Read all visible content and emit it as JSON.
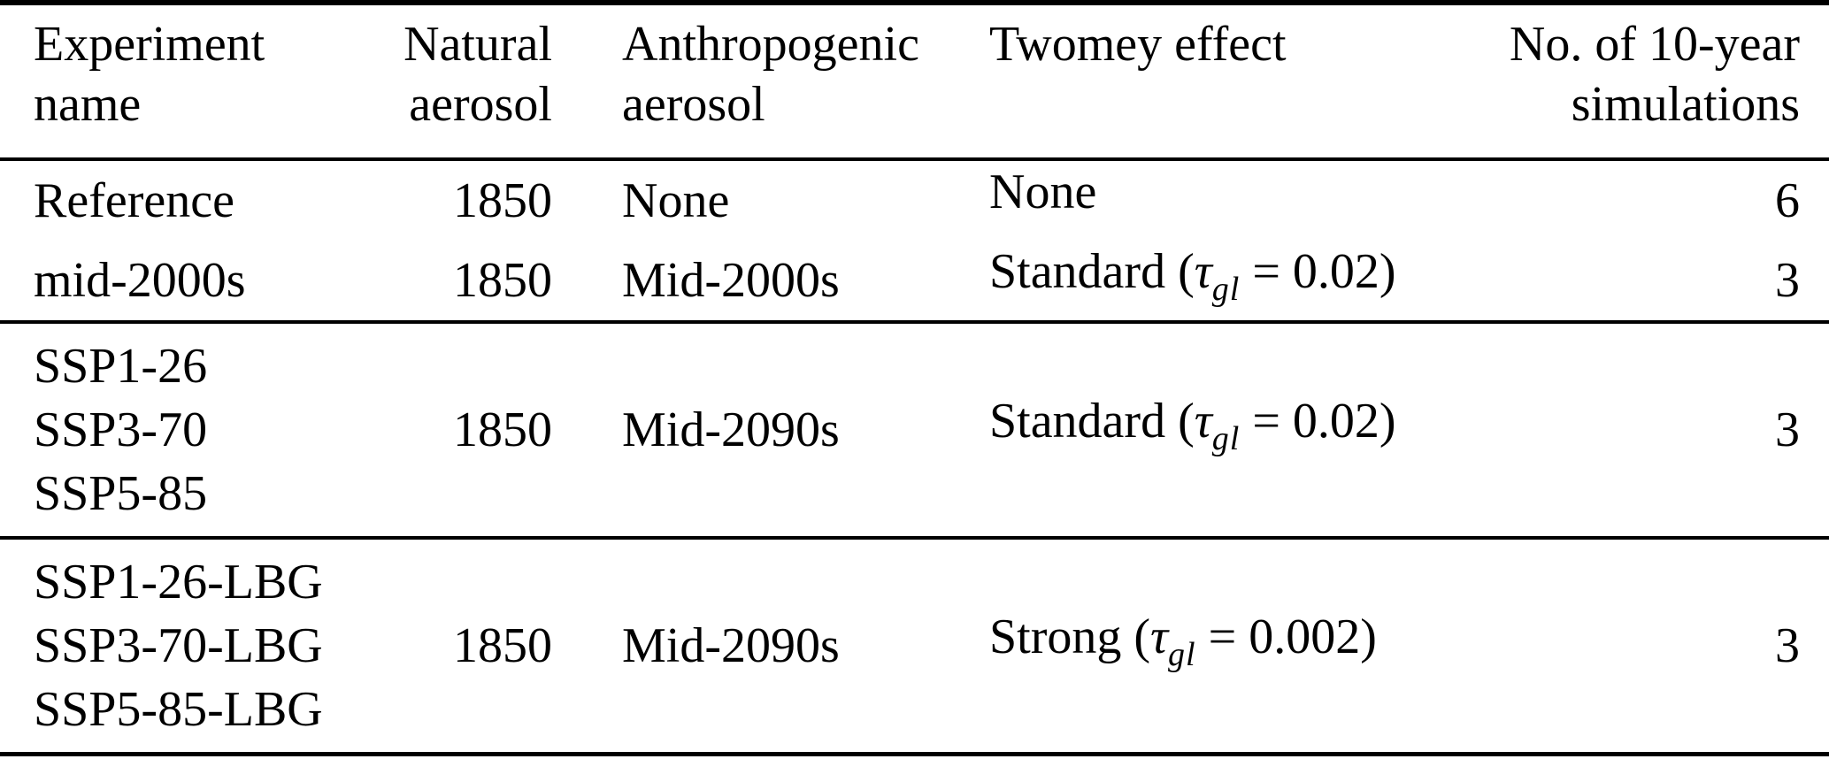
{
  "table": {
    "header": {
      "experiment": [
        "Experiment",
        "name"
      ],
      "natural": [
        "Natural",
        "aerosol"
      ],
      "anthropogenic": [
        "Anthropogenic",
        "aerosol"
      ],
      "twomey": [
        "Twomey effect"
      ],
      "simulations": [
        "No. of 10-year",
        "simulations"
      ]
    },
    "groups": [
      {
        "rows": [
          {
            "experiment": [
              "Reference"
            ],
            "natural": "1850",
            "anthropogenic": "None",
            "twomey": {
              "prefix": "None",
              "tau": "",
              "sub": "",
              "rest": ""
            },
            "simulations": "6"
          },
          {
            "experiment": [
              "mid-2000s"
            ],
            "natural": "1850",
            "anthropogenic": "Mid-2000s",
            "twomey": {
              "prefix": "Standard (",
              "tau": "τ",
              "sub": "gl",
              "rest": " = 0.02)"
            },
            "simulations": "3"
          }
        ]
      },
      {
        "rows": [
          {
            "experiment": [
              "SSP1-26",
              "SSP3-70",
              "SSP5-85"
            ],
            "natural": "1850",
            "anthropogenic": "Mid-2090s",
            "twomey": {
              "prefix": "Standard (",
              "tau": "τ",
              "sub": "gl",
              "rest": " = 0.02)"
            },
            "simulations": "3"
          }
        ]
      },
      {
        "rows": [
          {
            "experiment": [
              "SSP1-26-LBG",
              "SSP3-70-LBG",
              "SSP5-85-LBG"
            ],
            "natural": "1850",
            "anthropogenic": "Mid-2090s",
            "twomey": {
              "prefix": "Strong (",
              "tau": "τ",
              "sub": "gl",
              "rest": " = 0.002)"
            },
            "simulations": "3"
          }
        ]
      }
    ],
    "colors": {
      "text": "#000000",
      "background": "#ffffff",
      "rule": "#000000"
    }
  }
}
